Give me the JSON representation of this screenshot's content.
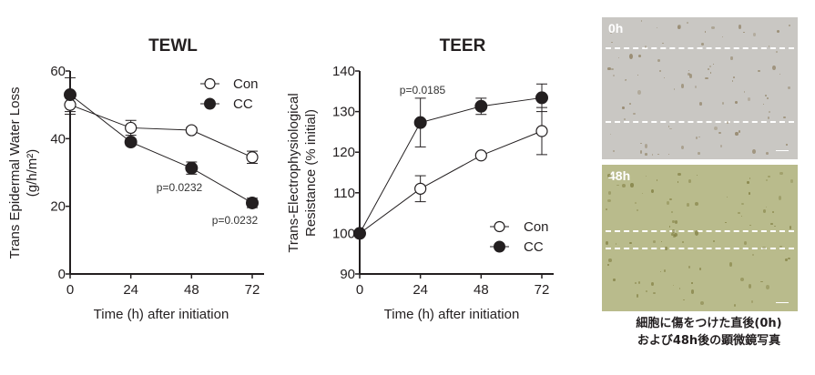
{
  "chart_data": [
    {
      "type": "line",
      "title": "TEWL",
      "xlabel": "Time (h) after initiation",
      "ylabel": "Trans Epidermal Water Loss",
      "ylabel_units": "(g/h/m²)",
      "x": [
        0,
        24,
        48,
        72
      ],
      "xticks": [
        "0",
        "24",
        "48",
        "72"
      ],
      "yticks": [
        "0",
        "20",
        "40",
        "60"
      ],
      "xlim": [
        0,
        72
      ],
      "ylim": [
        0,
        60
      ],
      "legend_position": "top-right",
      "series": [
        {
          "name": "Con",
          "marker": "open-circle",
          "values": [
            50,
            43.2,
            42.5,
            34.5
          ],
          "errors": [
            2.8,
            2.2,
            0.8,
            1.8
          ]
        },
        {
          "name": "CC",
          "marker": "filled-circle",
          "values": [
            53,
            39,
            31.3,
            21
          ],
          "errors": [
            5,
            1,
            1.8,
            1.4
          ]
        }
      ],
      "annotations": [
        {
          "text": "p=0.0232",
          "x": 48
        },
        {
          "text": "p=0.0232",
          "x": 72
        }
      ]
    },
    {
      "type": "line",
      "title": "TEER",
      "xlabel": "Time (h) after initiation",
      "ylabel": "Trans-Electrophysiological",
      "ylabel_line2": "Resistance (% initial)",
      "x": [
        0,
        24,
        48,
        72
      ],
      "xticks": [
        "0",
        "24",
        "48",
        "72"
      ],
      "yticks": [
        "90",
        "100",
        "110",
        "120",
        "130",
        "140"
      ],
      "xlim": [
        0,
        72
      ],
      "ylim": [
        90,
        140
      ],
      "legend_position": "bottom-right",
      "series": [
        {
          "name": "Con",
          "marker": "open-circle",
          "values": [
            100,
            111,
            119.2,
            125.2
          ],
          "errors": [
            0,
            3.2,
            0.5,
            5.8
          ]
        },
        {
          "name": "CC",
          "marker": "filled-circle",
          "values": [
            100,
            127.3,
            131.3,
            133.4
          ],
          "errors": [
            0,
            6,
            2,
            3.4
          ]
        }
      ],
      "annotations": [
        {
          "text": "p=0.0185",
          "x": 24
        }
      ]
    }
  ],
  "photos": {
    "first_label": "0h",
    "second_label": "48h",
    "caption_line1": "細胞に傷をつけた直後(0h)",
    "caption_line2": "および48h後の顕微鏡写真"
  },
  "colors": {
    "ink": "#231f20",
    "photo_0h": "#c9c7c3",
    "photo_48h": "#b9bb8c"
  }
}
